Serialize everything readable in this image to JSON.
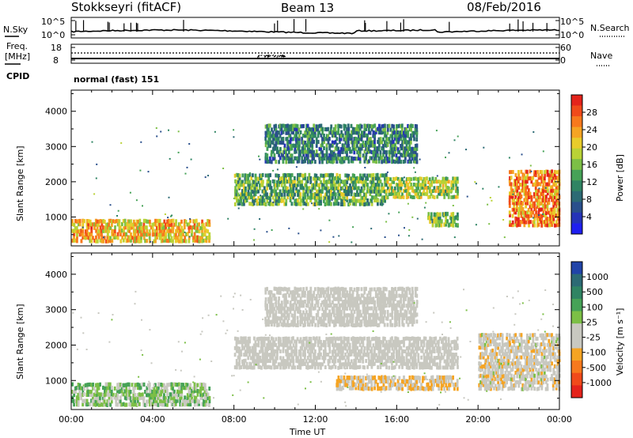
{
  "header": {
    "station": "Stokkseyri (fitACF)",
    "beam": "Beam 13",
    "date": "08/Feb/2016"
  },
  "noise_panel": {
    "left_label": "N.Sky",
    "right_label": "N.Search",
    "tick_top_left": "10^5",
    "tick_bottom_left": "10^0",
    "tick_top_right": "10^5",
    "tick_bottom_right": "10^0"
  },
  "freq_panel": {
    "left_label_1": "Freq.",
    "left_label_2": "[MHz]",
    "right_label": "Nave",
    "tick_top_left": "18",
    "tick_bottom_left": "8",
    "tick_top_right": "60",
    "tick_bottom_right": "0"
  },
  "cpid": {
    "label": "CPID",
    "value": "normal (fast) 151"
  },
  "colorbar_power": {
    "label": "Power [dB]",
    "ticks": [
      "28",
      "24",
      "20",
      "16",
      "12",
      "8",
      "4"
    ],
    "colors": [
      "#e4231b",
      "#f04a1a",
      "#f7791d",
      "#f5a423",
      "#e8cc2b",
      "#b9d236",
      "#7cbf46",
      "#46a257",
      "#2f8463",
      "#2c6a74",
      "#2a4f8c",
      "#2533b8",
      "#1f1ff0"
    ]
  },
  "colorbar_velocity": {
    "label": "Velocity [m s⁻¹]",
    "ticks": [
      "1000",
      "500",
      "100",
      "25",
      "-25",
      "-100",
      "-500",
      "-1000"
    ],
    "colors": [
      "#2144a8",
      "#2c6a74",
      "#2f8463",
      "#46a257",
      "#7cbf46",
      "#c8c8c0",
      "#c8c8c0",
      "#f5a423",
      "#f7791d",
      "#f04a1a",
      "#e4231b"
    ]
  },
  "chart_data": {
    "type": "heatmap",
    "xlabel": "Time UT",
    "ylabel": "Slant Range [km]",
    "x_ticks": [
      "00:00",
      "04:00",
      "08:00",
      "12:00",
      "16:00",
      "20:00",
      "00:00"
    ],
    "xlim": [
      0,
      24
    ],
    "ylim": [
      180,
      4600
    ],
    "y_ticks": [
      1000,
      2000,
      3000,
      4000
    ],
    "panels": [
      {
        "name": "Power",
        "regions": [
          {
            "t0": 0.0,
            "t1": 1.8,
            "r0": 250,
            "r1": 900,
            "value": 24
          },
          {
            "t0": 1.8,
            "t1": 6.8,
            "r0": 250,
            "r1": 900,
            "value": 22
          },
          {
            "t0": 8.0,
            "t1": 15.5,
            "r0": 1300,
            "r1": 2200,
            "value": 14
          },
          {
            "t0": 15.5,
            "t1": 19.0,
            "r0": 1500,
            "r1": 2100,
            "value": 18
          },
          {
            "t0": 9.5,
            "t1": 17.0,
            "r0": 2500,
            "r1": 3600,
            "value": 10
          },
          {
            "t0": 17.5,
            "t1": 19.0,
            "r0": 700,
            "r1": 1100,
            "value": 16
          },
          {
            "t0": 21.5,
            "t1": 24.0,
            "r0": 700,
            "r1": 2300,
            "value": 26
          }
        ]
      },
      {
        "name": "Velocity",
        "regions": [
          {
            "t0": 0.0,
            "t1": 6.8,
            "r0": 250,
            "r1": 900,
            "value": 200
          },
          {
            "t0": 8.0,
            "t1": 19.0,
            "r0": 1300,
            "r1": 2200,
            "value": 0
          },
          {
            "t0": 9.5,
            "t1": 17.0,
            "r0": 2500,
            "r1": 3600,
            "value": 0
          },
          {
            "t0": 13.0,
            "t1": 19.0,
            "r0": 700,
            "r1": 1100,
            "value": -300
          },
          {
            "t0": 20.0,
            "t1": 24.0,
            "r0": 700,
            "r1": 2300,
            "value": -150
          }
        ]
      }
    ]
  }
}
